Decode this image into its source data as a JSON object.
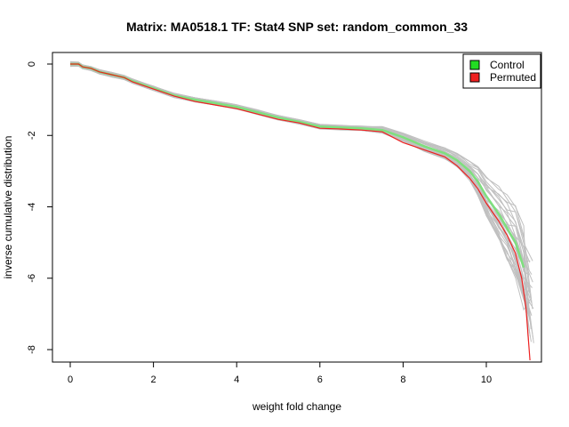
{
  "chart_data": {
    "type": "line",
    "title": "Matrix: MA0518.1 TF: Stat4 SNP set: random_common_33",
    "xlabel": "weight fold change",
    "ylabel": "inverse cumulative distribution",
    "xlim": [
      -0.5,
      11.3
    ],
    "ylim": [
      -8.3,
      0.2
    ],
    "x_ticks": [
      0,
      2,
      4,
      6,
      8,
      10
    ],
    "y_ticks": [
      0,
      -2,
      -4,
      -6,
      -8
    ],
    "legend_position": "top-right",
    "legend": [
      {
        "label": "Control",
        "color": "#22dd22"
      },
      {
        "label": "Permuted",
        "color": "#ee2020"
      }
    ],
    "background_series_color": "#c0c0c0",
    "background_series_count": 30,
    "series": [
      {
        "name": "Control",
        "color": "#7ee07e",
        "points": [
          [
            0,
            0
          ],
          [
            0.2,
            0
          ],
          [
            0.3,
            -0.08
          ],
          [
            0.5,
            -0.12
          ],
          [
            0.7,
            -0.22
          ],
          [
            1,
            -0.3
          ],
          [
            1.3,
            -0.38
          ],
          [
            1.5,
            -0.48
          ],
          [
            2,
            -0.68
          ],
          [
            2.5,
            -0.88
          ],
          [
            3,
            -1.0
          ],
          [
            3.5,
            -1.1
          ],
          [
            4,
            -1.2
          ],
          [
            4.5,
            -1.35
          ],
          [
            5,
            -1.5
          ],
          [
            5.5,
            -1.62
          ],
          [
            6,
            -1.75
          ],
          [
            6.5,
            -1.78
          ],
          [
            7,
            -1.8
          ],
          [
            7.5,
            -1.85
          ],
          [
            8,
            -2.05
          ],
          [
            8.5,
            -2.3
          ],
          [
            9,
            -2.5
          ],
          [
            9.3,
            -2.7
          ],
          [
            9.6,
            -3.0
          ],
          [
            9.8,
            -3.3
          ],
          [
            10,
            -3.7
          ],
          [
            10.3,
            -4.2
          ],
          [
            10.5,
            -4.6
          ],
          [
            10.7,
            -5.0
          ],
          [
            10.9,
            -5.7
          ]
        ]
      },
      {
        "name": "Permuted",
        "color": "#ee2020",
        "points": [
          [
            0,
            0
          ],
          [
            0.2,
            0
          ],
          [
            0.3,
            -0.08
          ],
          [
            0.5,
            -0.12
          ],
          [
            0.7,
            -0.22
          ],
          [
            1,
            -0.3
          ],
          [
            1.3,
            -0.38
          ],
          [
            1.5,
            -0.5
          ],
          [
            2,
            -0.7
          ],
          [
            2.5,
            -0.9
          ],
          [
            3,
            -1.05
          ],
          [
            3.5,
            -1.15
          ],
          [
            4,
            -1.25
          ],
          [
            4.5,
            -1.4
          ],
          [
            5,
            -1.55
          ],
          [
            5.5,
            -1.65
          ],
          [
            6,
            -1.8
          ],
          [
            6.5,
            -1.82
          ],
          [
            7,
            -1.85
          ],
          [
            7.5,
            -1.9
          ],
          [
            8,
            -2.2
          ],
          [
            8.5,
            -2.4
          ],
          [
            9,
            -2.6
          ],
          [
            9.3,
            -2.85
          ],
          [
            9.6,
            -3.2
          ],
          [
            9.8,
            -3.5
          ],
          [
            10,
            -3.9
          ],
          [
            10.3,
            -4.4
          ],
          [
            10.5,
            -4.8
          ],
          [
            10.7,
            -5.3
          ],
          [
            10.85,
            -6.0
          ],
          [
            10.95,
            -6.8
          ],
          [
            11.05,
            -8.3
          ]
        ]
      }
    ]
  }
}
